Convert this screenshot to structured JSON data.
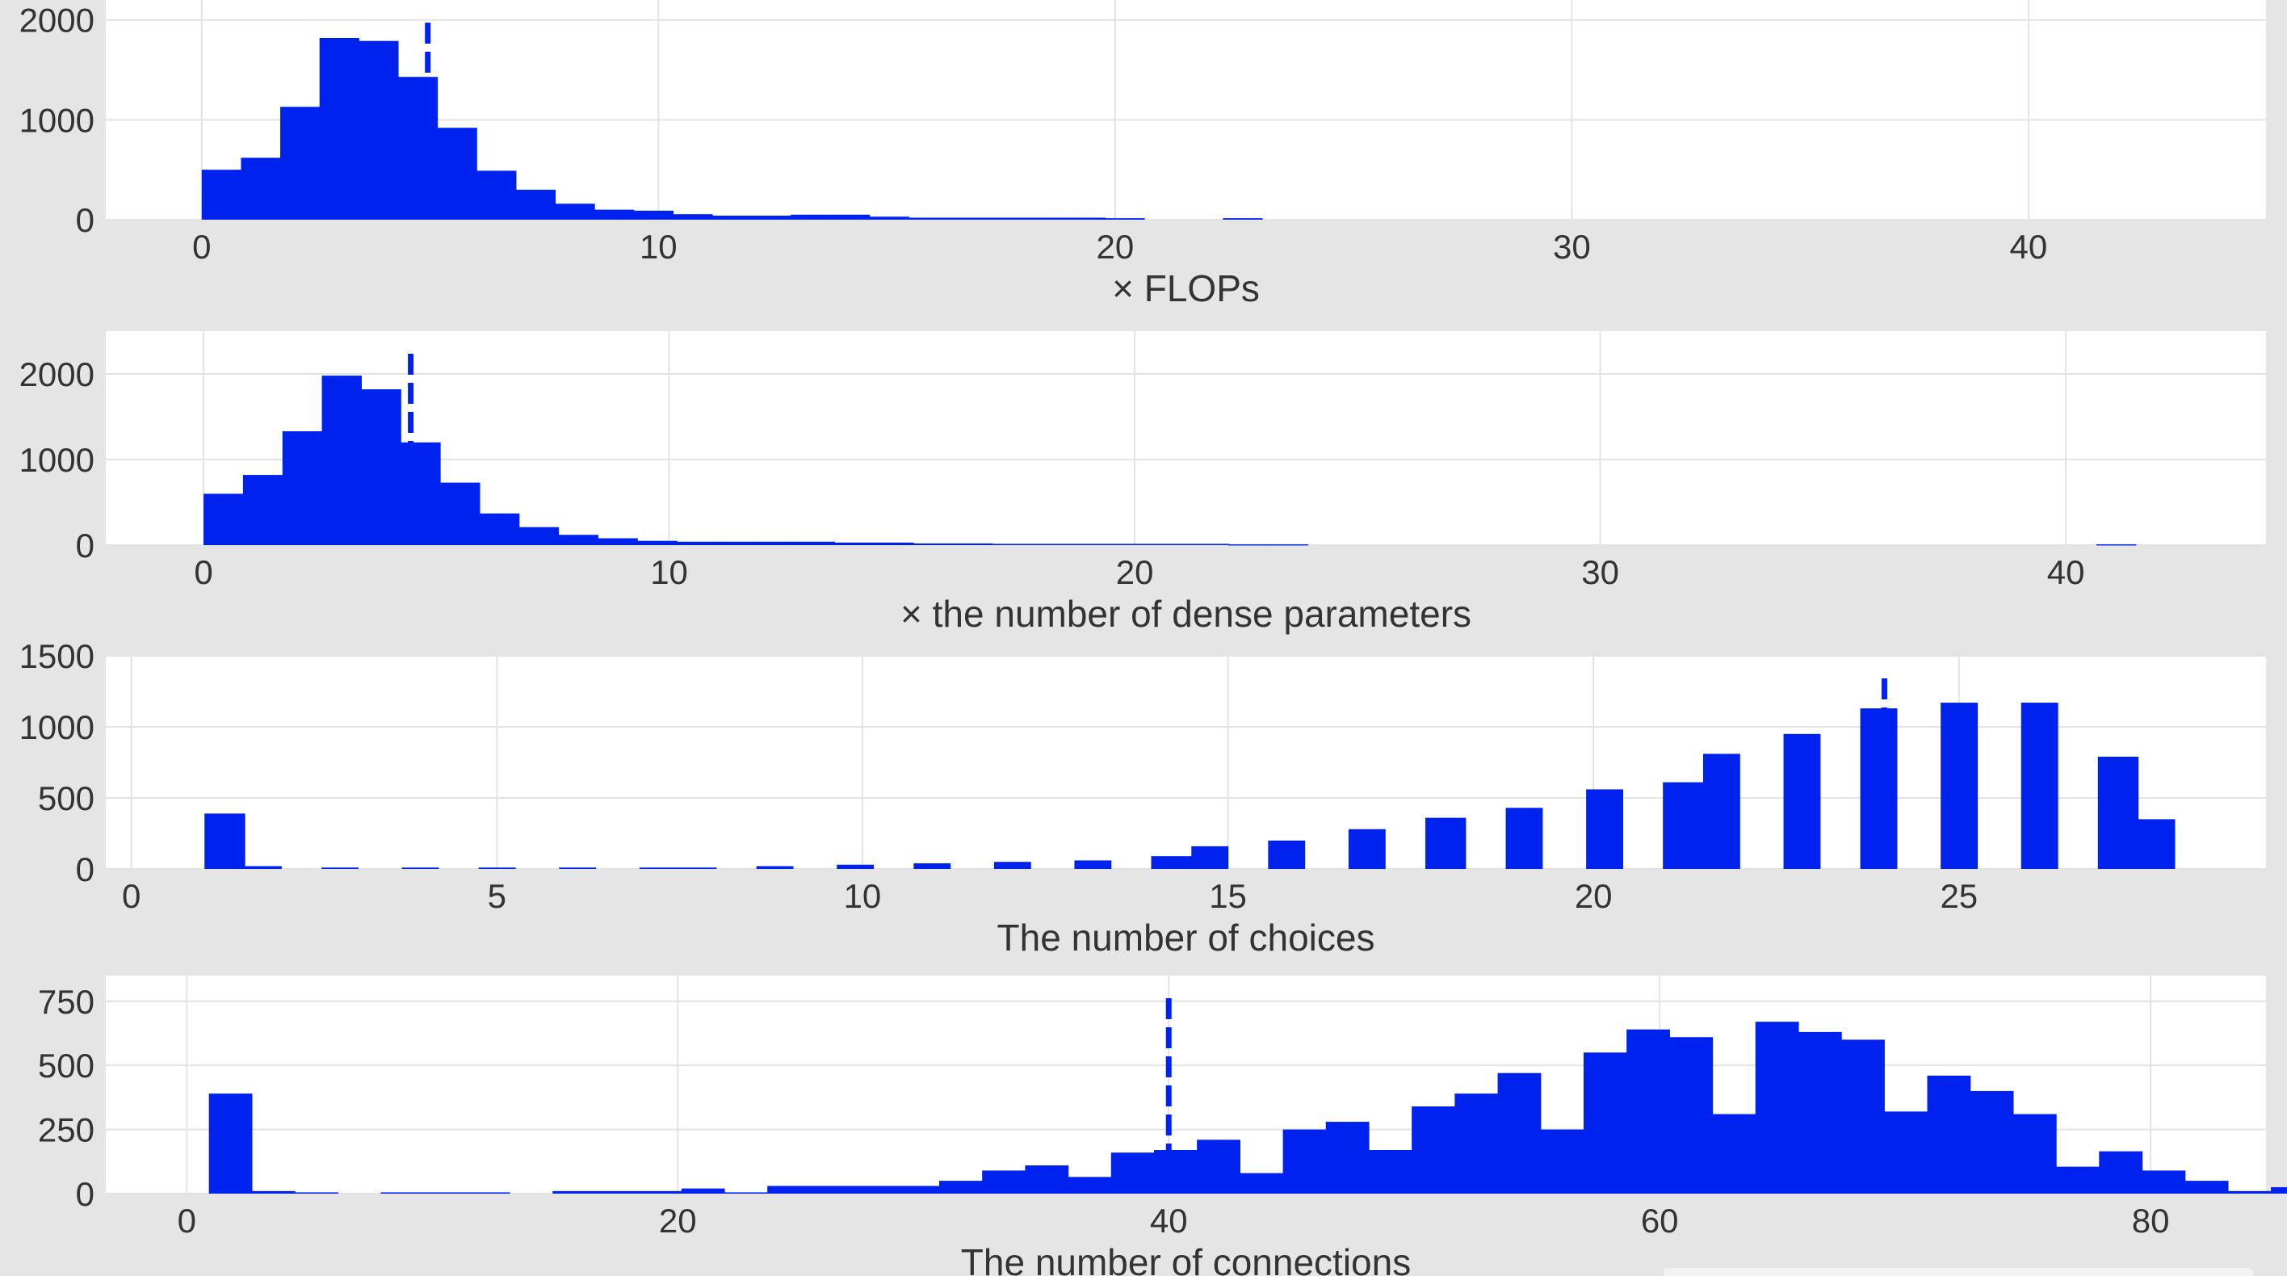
{
  "colors": {
    "bar": "#0022ee",
    "panel_bg": "#ffffff",
    "figure_bg": "#e5e5e5",
    "grid": "#e3e3e3",
    "text": "#333333"
  },
  "chart_data": [
    {
      "type": "bar",
      "xlabel": "× FLOPs",
      "ylabel": "",
      "xlim": [
        -2.1,
        45.2
      ],
      "ylim": [
        0,
        2200
      ],
      "xticks": [
        0,
        10,
        20,
        30,
        40
      ],
      "yticks": [
        0,
        1000,
        2000
      ],
      "grid": true,
      "bin_width": 0.86,
      "bin_start": 0,
      "values": [
        500,
        620,
        1130,
        1820,
        1790,
        1430,
        920,
        490,
        300,
        160,
        100,
        90,
        55,
        40,
        40,
        50,
        50,
        30,
        20,
        20,
        20,
        20,
        20,
        15,
        0,
        0,
        15,
        0
      ],
      "marker_x": 4.95,
      "marker_style": "dashed"
    },
    {
      "type": "bar",
      "xlabel": "× the number of dense parameters",
      "ylabel": "",
      "xlim": [
        -2.1,
        44.3
      ],
      "ylim": [
        0,
        2500
      ],
      "xticks": [
        0,
        10,
        20,
        30,
        40
      ],
      "yticks": [
        0,
        1000,
        2000
      ],
      "grid": true,
      "bin_width": 0.847,
      "bin_start": 0,
      "values": [
        600,
        820,
        1330,
        1980,
        1820,
        1200,
        730,
        370,
        210,
        120,
        80,
        50,
        40,
        40,
        40,
        40,
        30,
        30,
        20,
        20,
        15,
        15,
        15,
        15,
        15,
        15,
        10,
        10,
        0,
        0,
        0,
        0,
        0,
        0,
        0,
        0,
        0,
        0,
        0,
        0,
        0,
        0,
        0,
        0,
        0,
        0,
        0,
        0,
        10
      ],
      "marker_x": 4.45,
      "marker_style": "dashed"
    },
    {
      "type": "bar",
      "xlabel": "The number of choices",
      "ylabel": "",
      "xlim": [
        -0.35,
        29.2
      ],
      "ylim": [
        0,
        1500
      ],
      "xticks": [
        0,
        5,
        10,
        15,
        20,
        25
      ],
      "yticks": [
        0,
        500,
        1000,
        1500
      ],
      "grid": true,
      "bars": [
        {
          "x": 1.0,
          "w": 0.55,
          "v": 390
        },
        {
          "x": 1.55,
          "w": 0.5,
          "v": 20
        },
        {
          "x": 2.6,
          "w": 0.5,
          "v": 10
        },
        {
          "x": 3.7,
          "w": 0.5,
          "v": 10
        },
        {
          "x": 4.75,
          "w": 0.5,
          "v": 10
        },
        {
          "x": 5.85,
          "w": 0.5,
          "v": 10
        },
        {
          "x": 6.95,
          "w": 1.05,
          "v": 10
        },
        {
          "x": 8.55,
          "w": 0.5,
          "v": 20
        },
        {
          "x": 9.65,
          "w": 0.5,
          "v": 30
        },
        {
          "x": 10.7,
          "w": 0.5,
          "v": 40
        },
        {
          "x": 11.8,
          "w": 0.5,
          "v": 50
        },
        {
          "x": 12.9,
          "w": 0.5,
          "v": 60
        },
        {
          "x": 13.95,
          "w": 0.55,
          "v": 90
        },
        {
          "x": 14.5,
          "w": 0.5,
          "v": 160
        },
        {
          "x": 15.55,
          "w": 0.5,
          "v": 200
        },
        {
          "x": 16.65,
          "w": 0.5,
          "v": 280
        },
        {
          "x": 17.7,
          "w": 0.55,
          "v": 360
        },
        {
          "x": 18.8,
          "w": 0.5,
          "v": 430
        },
        {
          "x": 19.9,
          "w": 0.5,
          "v": 560
        },
        {
          "x": 20.95,
          "w": 0.55,
          "v": 610
        },
        {
          "x": 21.5,
          "w": 0.5,
          "v": 810
        },
        {
          "x": 22.6,
          "w": 0.5,
          "v": 950
        },
        {
          "x": 23.65,
          "w": 0.5,
          "v": 1130
        },
        {
          "x": 24.75,
          "w": 0.5,
          "v": 1170
        },
        {
          "x": 25.85,
          "w": 0.5,
          "v": 1170
        },
        {
          "x": 26.9,
          "w": 0.55,
          "v": 790
        },
        {
          "x": 27.45,
          "w": 0.5,
          "v": 350
        }
      ],
      "marker_x": 23.98,
      "marker_style": "dashed"
    },
    {
      "type": "bar",
      "xlabel": "The number of connections",
      "ylabel": "",
      "xlim": [
        -3.3,
        84.7
      ],
      "ylim": [
        0,
        850
      ],
      "xticks": [
        0,
        20,
        40,
        60,
        80
      ],
      "yticks": [
        0,
        250,
        500,
        750
      ],
      "grid": true,
      "bin_width": 1.75,
      "bin_start": 0.9,
      "values": [
        390,
        10,
        5,
        0,
        5,
        5,
        5,
        0,
        10,
        10,
        10,
        20,
        5,
        30,
        30,
        30,
        30,
        50,
        90,
        110,
        65,
        160,
        170,
        210,
        80,
        250,
        280,
        170,
        340,
        390,
        470,
        250,
        550,
        640,
        610,
        310,
        670,
        630,
        600,
        320,
        460,
        400,
        310,
        105,
        165,
        90,
        50,
        10,
        25,
        0
      ],
      "marker_x": 40.0,
      "marker_style": "dashed"
    }
  ]
}
